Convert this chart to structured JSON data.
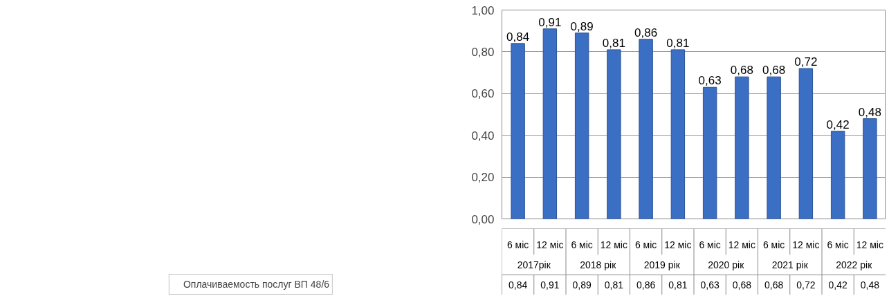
{
  "chart_data": {
    "type": "bar",
    "categories": [
      "6 міс",
      "12 міс",
      "6 міс",
      "12 міс",
      "6 міс",
      "12 міс",
      "6 міс",
      "12 міс",
      "6 міс",
      "12 міс",
      "6 міс",
      "12 міс"
    ],
    "annotations": [
      "2017рік",
      "2018 рік",
      "2019 рік",
      "2020 рік",
      "2021 рік",
      "2022 рік"
    ],
    "series": [
      {
        "name": "Оплачиваемость послуг ВП 48/6",
        "color": "#3a6fc4",
        "values": [
          0.84,
          0.91,
          0.89,
          0.81,
          0.86,
          0.81,
          0.63,
          0.68,
          0.68,
          0.72,
          0.42,
          0.48
        ],
        "value_labels": [
          "0,84",
          "0,91",
          "0,89",
          "0,81",
          "0,86",
          "0,81",
          "0,63",
          "0,68",
          "0,68",
          "0,72",
          "0,42",
          "0,48"
        ]
      }
    ],
    "ylim": [
      0,
      1
    ],
    "yticks": [
      {
        "value": 0,
        "label": "0,00"
      },
      {
        "value": 0.2,
        "label": "0,20"
      },
      {
        "value": 0.4,
        "label": "0,40"
      },
      {
        "value": 0.6,
        "label": "0,60"
      },
      {
        "value": 0.8,
        "label": "0,80"
      },
      {
        "value": 1,
        "label": "1,00"
      }
    ],
    "grid": "y",
    "legend": "bottom"
  }
}
